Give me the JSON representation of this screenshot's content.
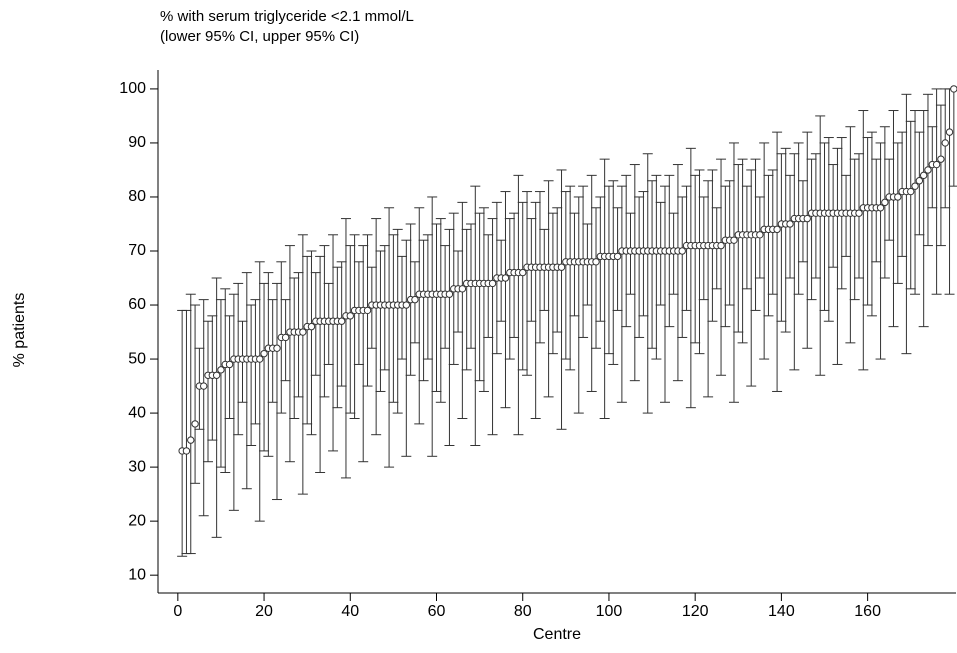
{
  "chart_data": {
    "type": "errorbar",
    "title": "% with serum triglyceride <2.1 mmol/L",
    "subtitle": "(lower 95% CI, upper 95% CI)",
    "x_label": "Centre",
    "y_label": "% patients",
    "xlim": [
      -4.6,
      180.5
    ],
    "ylim": [
      6.7,
      103.5
    ],
    "xticks": [
      0,
      20,
      40,
      60,
      80,
      100,
      120,
      140,
      160
    ],
    "yticks": [
      10,
      20,
      30,
      40,
      50,
      60,
      70,
      80,
      90,
      100
    ],
    "color": "#333333",
    "x": [
      1,
      2,
      3,
      4,
      5,
      6,
      7,
      8,
      9,
      10,
      11,
      12,
      13,
      14,
      15,
      16,
      17,
      18,
      19,
      20,
      21,
      22,
      23,
      24,
      25,
      26,
      27,
      28,
      29,
      30,
      31,
      32,
      33,
      34,
      35,
      36,
      37,
      38,
      39,
      40,
      41,
      42,
      43,
      44,
      45,
      46,
      47,
      48,
      49,
      50,
      51,
      52,
      53,
      54,
      55,
      56,
      57,
      58,
      59,
      60,
      61,
      62,
      63,
      64,
      65,
      66,
      67,
      68,
      69,
      70,
      71,
      72,
      73,
      74,
      75,
      76,
      77,
      78,
      79,
      80,
      81,
      82,
      83,
      84,
      85,
      86,
      87,
      88,
      89,
      90,
      91,
      92,
      93,
      94,
      95,
      96,
      97,
      98,
      99,
      100,
      101,
      102,
      103,
      104,
      105,
      106,
      107,
      108,
      109,
      110,
      111,
      112,
      113,
      114,
      115,
      116,
      117,
      118,
      119,
      120,
      121,
      122,
      123,
      124,
      125,
      126,
      127,
      128,
      129,
      130,
      131,
      132,
      133,
      134,
      135,
      136,
      137,
      138,
      139,
      140,
      141,
      142,
      143,
      144,
      145,
      146,
      147,
      148,
      149,
      150,
      151,
      152,
      153,
      154,
      155,
      156,
      157,
      158,
      159,
      160,
      161,
      162,
      163,
      164,
      165,
      166,
      167,
      168,
      169,
      170,
      171,
      172,
      173,
      174,
      175,
      176,
      177,
      178,
      179,
      180
    ],
    "values": [
      33,
      33,
      35,
      38,
      45,
      45,
      47,
      47,
      47,
      48,
      49,
      49,
      50,
      50,
      50,
      50,
      50,
      50,
      50,
      51,
      52,
      52,
      52,
      54,
      54,
      55,
      55,
      55,
      55,
      56,
      56,
      57,
      57,
      57,
      57,
      57,
      57,
      57,
      58,
      58,
      59,
      59,
      59,
      59,
      60,
      60,
      60,
      60,
      60,
      60,
      60,
      60,
      60,
      61,
      61,
      62,
      62,
      62,
      62,
      62,
      62,
      62,
      62,
      63,
      63,
      63,
      64,
      64,
      64,
      64,
      64,
      64,
      64,
      65,
      65,
      65,
      66,
      66,
      66,
      66,
      67,
      67,
      67,
      67,
      67,
      67,
      67,
      67,
      67,
      68,
      68,
      68,
      68,
      68,
      68,
      68,
      68,
      69,
      69,
      69,
      69,
      69,
      70,
      70,
      70,
      70,
      70,
      70,
      70,
      70,
      70,
      70,
      70,
      70,
      70,
      70,
      70,
      71,
      71,
      71,
      71,
      71,
      71,
      71,
      71,
      71,
      72,
      72,
      72,
      73,
      73,
      73,
      73,
      73,
      73,
      74,
      74,
      74,
      74,
      75,
      75,
      75,
      76,
      76,
      76,
      76,
      77,
      77,
      77,
      77,
      77,
      77,
      77,
      77,
      77,
      77,
      77,
      77,
      78,
      78,
      78,
      78,
      78,
      79,
      80,
      80,
      80,
      81,
      81,
      81,
      82,
      83,
      84,
      85,
      86,
      86,
      87,
      90,
      92,
      100
    ],
    "lower": [
      13.5,
      14,
      14,
      27,
      37,
      21,
      31,
      35,
      17,
      30,
      29,
      39,
      22,
      36,
      42,
      26,
      34,
      38,
      20,
      33,
      32,
      42,
      24,
      40,
      46,
      31,
      39,
      43,
      25,
      38,
      36,
      47,
      29,
      43,
      49,
      33,
      41,
      45,
      28,
      40,
      39,
      49,
      31,
      45,
      52,
      36,
      44,
      48,
      30,
      42,
      40,
      50,
      32,
      47,
      53,
      38,
      46,
      50,
      32,
      44,
      42,
      52,
      34,
      49,
      55,
      39,
      48,
      52,
      34,
      46,
      44,
      54,
      36,
      51,
      57,
      41,
      50,
      54,
      36,
      48,
      47,
      57,
      39,
      53,
      59,
      43,
      51,
      55,
      37,
      50,
      48,
      58,
      40,
      54,
      60,
      44,
      52,
      57,
      39,
      51,
      49,
      59,
      42,
      56,
      62,
      46,
      54,
      58,
      40,
      52,
      50,
      60,
      42,
      56,
      62,
      46,
      54,
      59,
      41,
      53,
      51,
      61,
      43,
      57,
      63,
      47,
      56,
      60,
      42,
      55,
      53,
      63,
      45,
      59,
      65,
      50,
      58,
      62,
      44,
      57,
      55,
      65,
      48,
      62,
      68,
      52,
      61,
      65,
      47,
      59,
      57,
      67,
      49,
      63,
      69,
      53,
      61,
      65,
      48,
      60,
      58,
      68,
      50,
      65,
      72,
      56,
      64,
      69,
      51,
      63,
      62,
      73,
      56,
      71,
      78,
      62,
      71,
      78,
      62,
      82
    ],
    "upper": [
      59,
      59,
      62,
      60,
      52,
      61,
      57,
      58,
      65,
      61,
      63,
      58,
      62,
      64,
      57,
      66,
      60,
      61,
      68,
      64,
      66,
      61,
      64,
      68,
      61,
      71,
      65,
      66,
      73,
      69,
      70,
      66,
      69,
      71,
      64,
      73,
      67,
      68,
      76,
      71,
      73,
      68,
      71,
      73,
      67,
      76,
      70,
      71,
      78,
      73,
      74,
      69,
      72,
      75,
      68,
      78,
      72,
      73,
      80,
      75,
      76,
      71,
      74,
      77,
      70,
      79,
      74,
      75,
      82,
      77,
      78,
      73,
      76,
      79,
      72,
      81,
      76,
      77,
      84,
      79,
      81,
      76,
      79,
      81,
      74,
      83,
      77,
      78,
      85,
      81,
      82,
      77,
      80,
      82,
      75,
      84,
      78,
      80,
      87,
      82,
      83,
      78,
      82,
      84,
      77,
      86,
      80,
      81,
      88,
      83,
      84,
      79,
      82,
      84,
      77,
      86,
      80,
      82,
      89,
      84,
      85,
      80,
      83,
      85,
      78,
      87,
      82,
      83,
      90,
      86,
      87,
      82,
      85,
      87,
      80,
      90,
      84,
      85,
      92,
      88,
      89,
      84,
      88,
      90,
      83,
      92,
      87,
      88,
      95,
      90,
      91,
      86,
      89,
      91,
      84,
      93,
      87,
      88,
      96,
      91,
      92,
      87,
      90,
      93,
      87,
      96,
      90,
      92,
      99,
      94,
      96,
      92,
      96,
      99,
      93,
      100,
      97,
      100,
      100,
      100
    ]
  }
}
